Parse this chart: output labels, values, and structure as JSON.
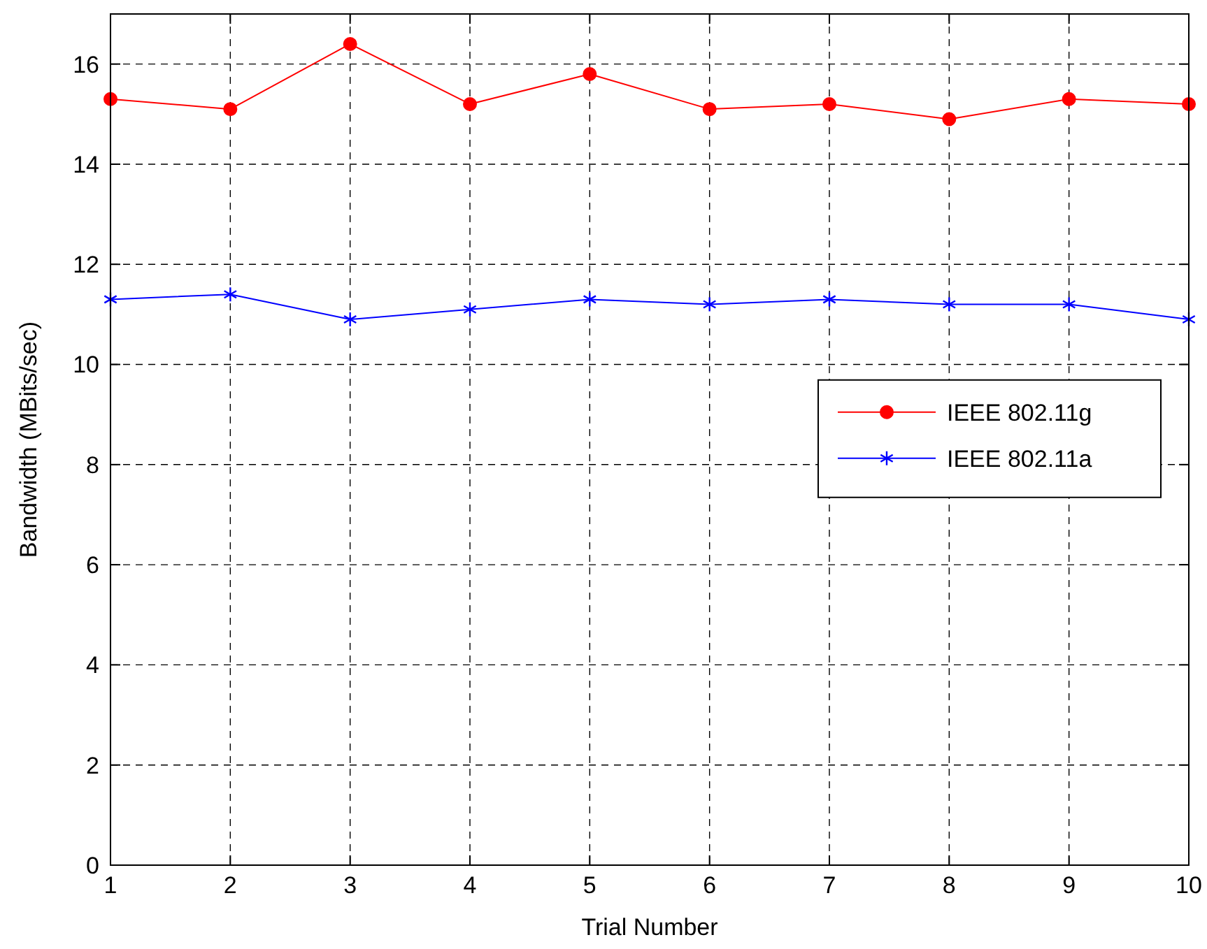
{
  "chart_data": {
    "type": "line",
    "xlabel": "Trial Number",
    "ylabel": "Bandwidth (MBits/sec)",
    "x": [
      1,
      2,
      3,
      4,
      5,
      6,
      7,
      8,
      9,
      10
    ],
    "series": [
      {
        "name": "IEEE 802.11g",
        "color": "#ff0000",
        "marker": "circle",
        "values": [
          15.3,
          15.1,
          16.4,
          15.2,
          15.8,
          15.1,
          15.2,
          14.9,
          15.3,
          15.2
        ]
      },
      {
        "name": "IEEE 802.11a",
        "color": "#0000ff",
        "marker": "cross",
        "values": [
          11.3,
          11.4,
          10.9,
          11.1,
          11.3,
          11.2,
          11.3,
          11.2,
          11.2,
          10.9
        ]
      }
    ],
    "xlim": [
      1,
      10
    ],
    "xticks": [
      1,
      2,
      3,
      4,
      5,
      6,
      7,
      8,
      9,
      10
    ],
    "ylim": [
      0,
      17
    ],
    "yticks": [
      0,
      2,
      4,
      6,
      8,
      10,
      12,
      14,
      16
    ],
    "grid": true,
    "legend": "right",
    "line_style": "solid"
  }
}
